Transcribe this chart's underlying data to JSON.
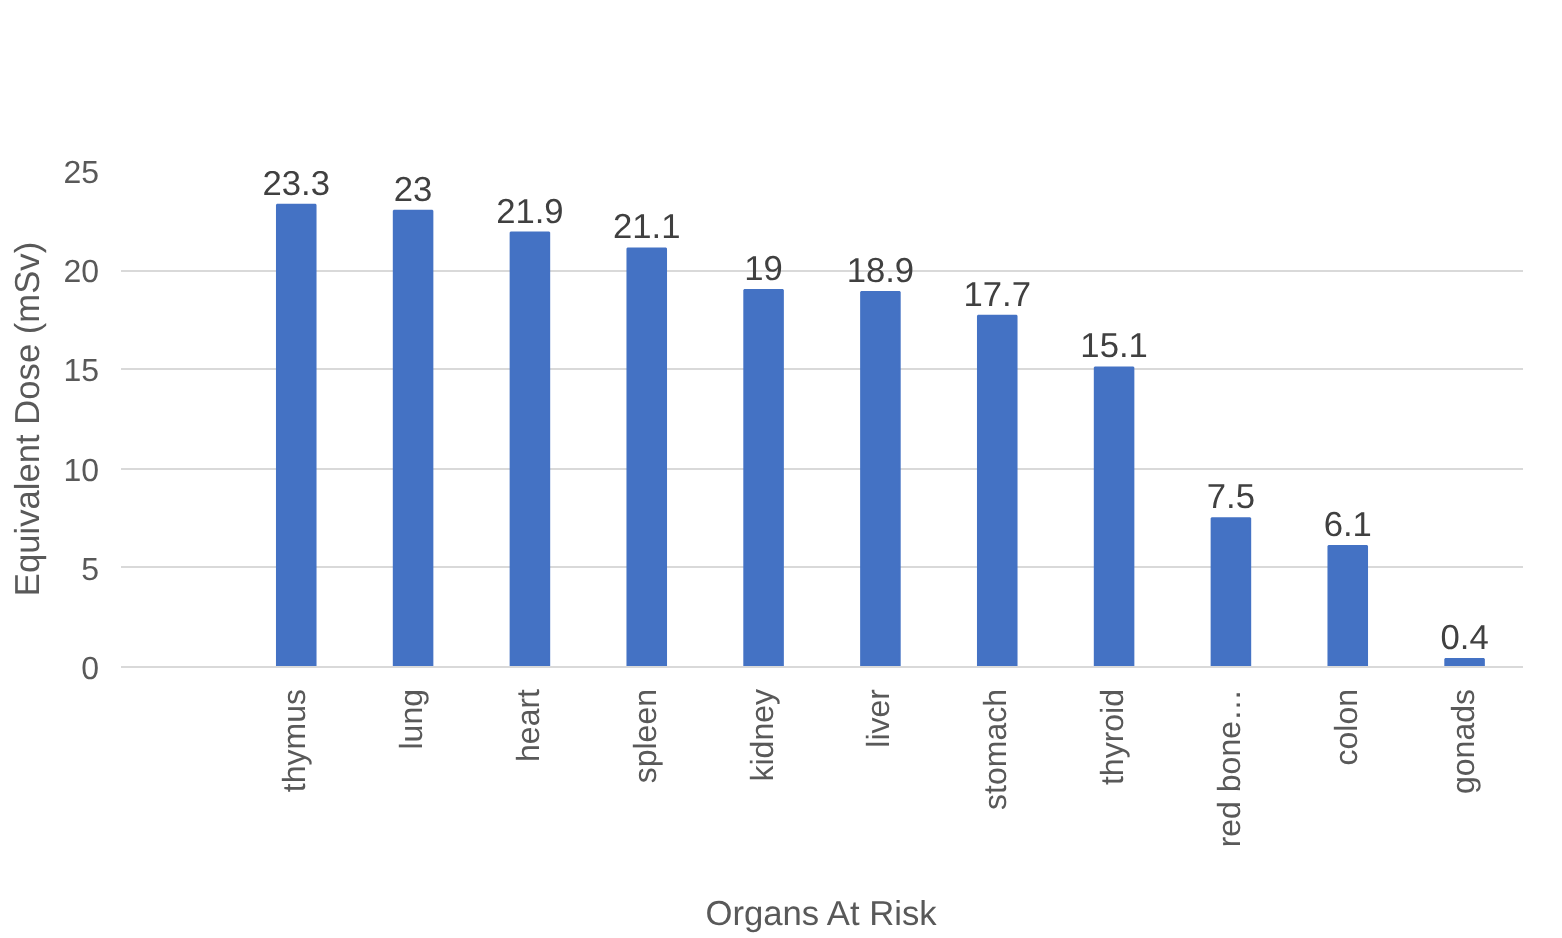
{
  "chart_data": {
    "type": "bar",
    "xlabel": "Organs At Risk",
    "ylabel": "Equivalent Dose (mSv)",
    "categories": [
      null,
      "thymus",
      "lung",
      "heart",
      "spleen",
      "kidney",
      "liver",
      "stomach",
      "thyroid",
      "red bone…",
      "colon",
      "gonads"
    ],
    "values": [
      null,
      23.3,
      23,
      21.9,
      21.1,
      19,
      18.9,
      17.7,
      15.1,
      7.5,
      6.1,
      0.4
    ],
    "color": "#4472c4",
    "ylim": [
      0,
      25
    ],
    "yticks": [
      0,
      5,
      10,
      15,
      20,
      25
    ],
    "grid": "y",
    "data_labels": true
  }
}
